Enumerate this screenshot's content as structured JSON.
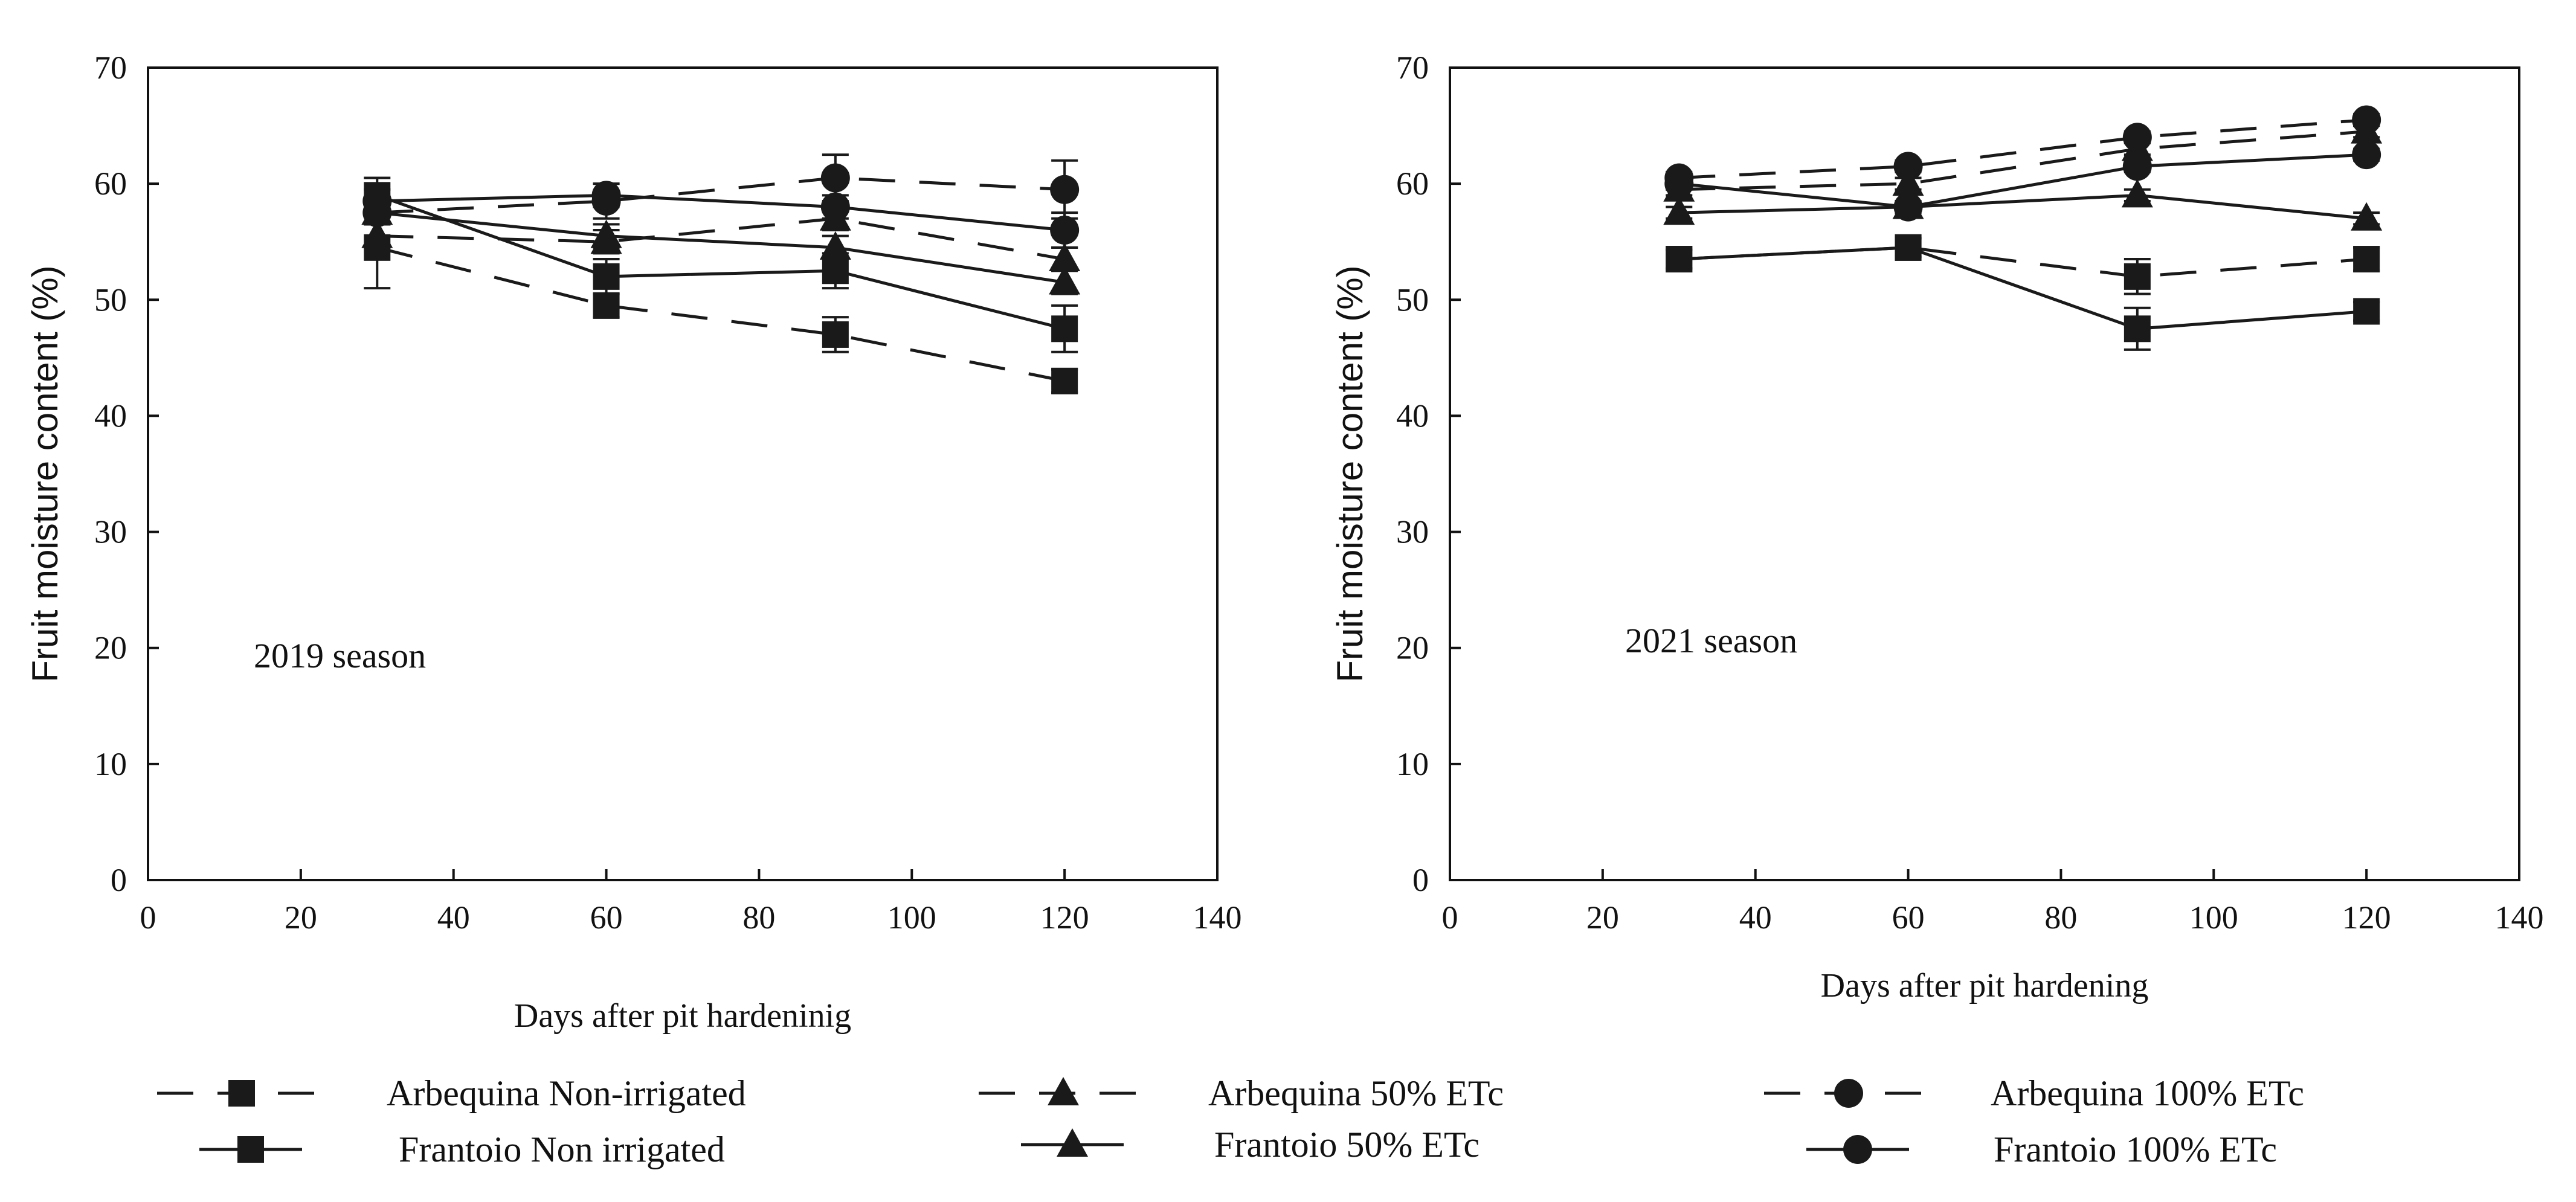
{
  "chart_data": [
    {
      "type": "line",
      "xlabel": "Days after pit hardeninig",
      "ylabel": "Fruit moisture content (%)",
      "annotation": "2019 season",
      "xlim": [
        0,
        140
      ],
      "ylim": [
        0,
        70
      ],
      "xticks": [
        "0",
        "20",
        "40",
        "60",
        "80",
        "100",
        "120",
        "140"
      ],
      "yticks": [
        "0",
        "10",
        "20",
        "30",
        "40",
        "50",
        "60",
        "70"
      ],
      "x": [
        30,
        60,
        90,
        120
      ],
      "series": [
        {
          "name": "Arbequina Non-irrigated",
          "marker": "square",
          "dash": "dashed",
          "values": [
            54.5,
            49.5,
            47.0,
            43.0
          ],
          "errors": [
            3.5,
            1.0,
            1.5,
            1.0
          ]
        },
        {
          "name": "Frantoio Non irrigated",
          "marker": "square",
          "dash": "solid",
          "values": [
            59.0,
            52.0,
            52.5,
            47.5
          ],
          "errors": [
            1.5,
            1.5,
            1.5,
            2.0
          ]
        },
        {
          "name": "Arbequina 50% ETc",
          "marker": "triangle",
          "dash": "dashed",
          "values": [
            55.5,
            55.0,
            57.0,
            53.5
          ],
          "errors": [
            1.0,
            1.0,
            1.0,
            1.0
          ]
        },
        {
          "name": "Frantoio 50% ETc",
          "marker": "triangle",
          "dash": "solid",
          "values": [
            57.5,
            55.5,
            54.5,
            51.5
          ],
          "errors": [
            1.0,
            1.0,
            1.0,
            1.0
          ]
        },
        {
          "name": "Arbequina 100% ETc",
          "marker": "circle",
          "dash": "dashed",
          "values": [
            57.5,
            58.5,
            60.5,
            59.5
          ],
          "errors": [
            1.0,
            1.5,
            2.0,
            2.5
          ]
        },
        {
          "name": "Frantoio 100% ETc",
          "marker": "circle",
          "dash": "solid",
          "values": [
            58.5,
            59.0,
            58.0,
            56.0
          ],
          "errors": [
            1.0,
            1.0,
            1.0,
            1.5
          ]
        }
      ]
    },
    {
      "type": "line",
      "xlabel": "Days after pit hardening",
      "ylabel": "Fruit moisture content (%)",
      "annotation": "2021 season",
      "xlim": [
        0,
        140
      ],
      "ylim": [
        0,
        70
      ],
      "xticks": [
        "0",
        "20",
        "40",
        "60",
        "80",
        "100",
        "120",
        "140"
      ],
      "yticks": [
        "0",
        "10",
        "20",
        "30",
        "40",
        "50",
        "60",
        "70"
      ],
      "x": [
        30,
        60,
        90,
        120
      ],
      "series": [
        {
          "name": "Arbequina Non-irrigated",
          "marker": "square",
          "dash": "dashed",
          "values": [
            53.5,
            54.5,
            52.0,
            53.5
          ],
          "errors": [
            0.8,
            0.8,
            1.5,
            1.0
          ]
        },
        {
          "name": "Frantoio Non irrigated",
          "marker": "square",
          "dash": "solid",
          "values": [
            53.5,
            54.5,
            47.5,
            49.0
          ],
          "errors": [
            0.8,
            0.8,
            1.8,
            0.8
          ]
        },
        {
          "name": "Arbequina 50% ETc",
          "marker": "triangle",
          "dash": "dashed",
          "values": [
            59.5,
            60.0,
            63.0,
            64.5
          ],
          "errors": [
            0.5,
            0.5,
            0.5,
            0.5
          ]
        },
        {
          "name": "Frantoio 50% ETc",
          "marker": "triangle",
          "dash": "solid",
          "values": [
            57.5,
            58.0,
            59.0,
            57.0
          ],
          "errors": [
            0.5,
            0.5,
            0.5,
            0.5
          ]
        },
        {
          "name": "Arbequina 100% ETc",
          "marker": "circle",
          "dash": "dashed",
          "values": [
            60.5,
            61.5,
            64.0,
            65.5
          ],
          "errors": [
            0.5,
            0.5,
            0.5,
            0.5
          ]
        },
        {
          "name": "Frantoio 100% ETc",
          "marker": "circle",
          "dash": "solid",
          "values": [
            60.0,
            58.0,
            61.5,
            62.5
          ],
          "errors": [
            0.5,
            0.5,
            0.5,
            0.5
          ]
        }
      ]
    }
  ],
  "legend": {
    "placement": "bottom",
    "items": [
      {
        "label": "Arbequina Non-irrigated",
        "marker": "square",
        "dash": "dashed"
      },
      {
        "label": "Arbequina 50% ETc",
        "marker": "triangle",
        "dash": "dashed"
      },
      {
        "label": "Arbequina 100% ETc",
        "marker": "circle",
        "dash": "dashed"
      },
      {
        "label": "Frantoio Non irrigated",
        "marker": "square",
        "dash": "solid"
      },
      {
        "label": "Frantoio 50% ETc",
        "marker": "triangle",
        "dash": "solid"
      },
      {
        "label": "Frantoio 100% ETc",
        "marker": "circle",
        "dash": "solid"
      }
    ]
  }
}
